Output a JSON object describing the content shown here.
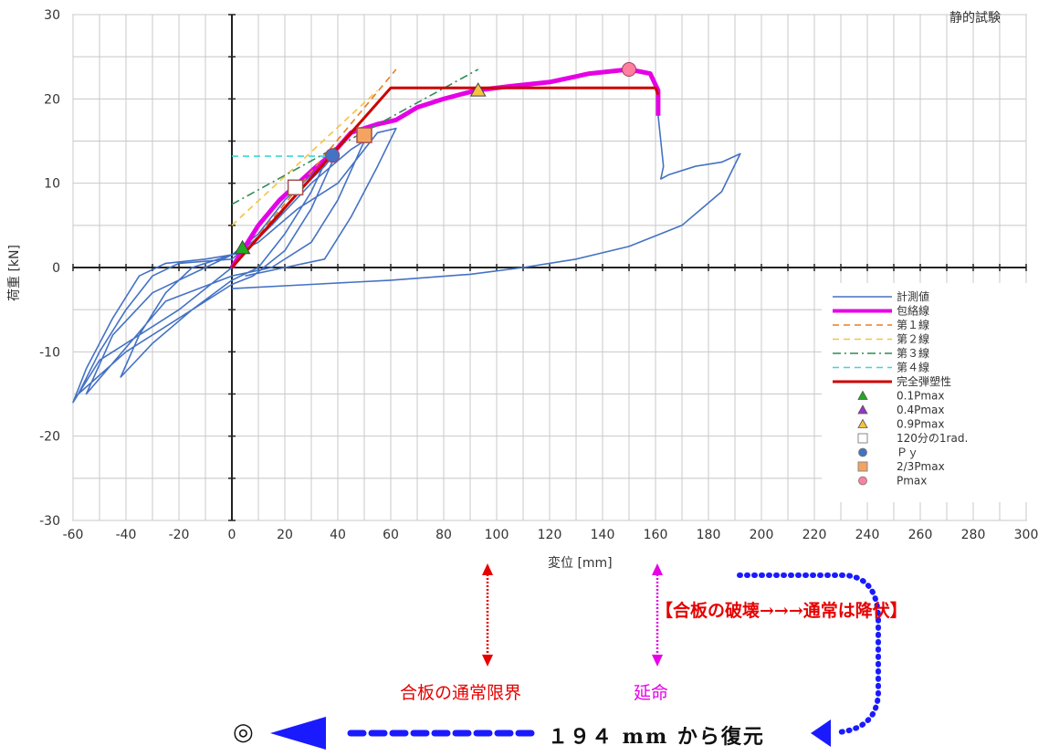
{
  "chart_data": {
    "type": "line",
    "title": "静的試験",
    "xlabel": "変位 [mm]",
    "ylabel": "荷重 [kN]",
    "xlim": [
      -60,
      300
    ],
    "ylim": [
      -30,
      30
    ],
    "x_ticks": [
      "-60",
      "-40",
      "-20",
      "0",
      "20",
      "40",
      "60",
      "80",
      "100",
      "120",
      "140",
      "160",
      "180",
      "200",
      "220",
      "240",
      "260",
      "280",
      "300"
    ],
    "y_ticks": [
      "30",
      "20",
      "10",
      "0",
      "-10",
      "-20",
      "-30"
    ],
    "grid": true,
    "legend_position": "right",
    "legend": [
      {
        "label": "計測値",
        "color": "#4472c4",
        "style": "solid"
      },
      {
        "label": "包絡線",
        "color": "#e600e6",
        "style": "thick"
      },
      {
        "label": "第１線",
        "color": "#e67e22",
        "style": "dash"
      },
      {
        "label": "第２線",
        "color": "#f5c242",
        "style": "dash"
      },
      {
        "label": "第３線",
        "color": "#2e8b57",
        "style": "dashdot"
      },
      {
        "label": "第４線",
        "color": "#3cd6d6",
        "style": "dash"
      },
      {
        "label": "完全弾塑性",
        "color": "#cc0000",
        "style": "solid"
      },
      {
        "label": "0.1Pmax",
        "color": "#22aa22",
        "marker": "triangle"
      },
      {
        "label": "0.4Pmax",
        "color": "#9933cc",
        "marker": "triangle"
      },
      {
        "label": "0.9Pmax",
        "color": "#f5c242",
        "marker": "triangle"
      },
      {
        "label": "120分の1rad.",
        "color": "#ffffff",
        "marker": "square"
      },
      {
        "label": "Ｐｙ",
        "color": "#4472c4",
        "marker": "circle"
      },
      {
        "label": "2/3Pmax",
        "color": "#f4a460",
        "marker": "square"
      },
      {
        "label": "Pmax",
        "color": "#ff7f9f",
        "marker": "circle"
      }
    ],
    "series": [
      {
        "name": "計測値",
        "color": "#4472c4",
        "segments": [
          [
            [
              0,
              0
            ],
            [
              -8,
              -2
            ],
            [
              -20,
              -5
            ],
            [
              -35,
              -8
            ],
            [
              -50,
              -11
            ],
            [
              -60,
              -16
            ],
            [
              -55,
              -12
            ],
            [
              -45,
              -6
            ],
            [
              -35,
              -1
            ],
            [
              -25,
              0.5
            ],
            [
              -10,
              1
            ],
            [
              0,
              1.5
            ],
            [
              10,
              4
            ],
            [
              20,
              8
            ],
            [
              30,
              11
            ],
            [
              36,
              13
            ],
            [
              30,
              9
            ],
            [
              20,
              4
            ],
            [
              10,
              0
            ],
            [
              0,
              -1.5
            ],
            [
              -15,
              -5
            ],
            [
              -30,
              -9
            ],
            [
              -42,
              -13
            ],
            [
              -35,
              -8
            ],
            [
              -25,
              -3
            ],
            [
              -15,
              0
            ],
            [
              -5,
              1
            ],
            [
              5,
              2
            ],
            [
              15,
              5
            ],
            [
              25,
              9
            ],
            [
              35,
              12
            ],
            [
              40,
              14
            ],
            [
              30,
              7
            ],
            [
              20,
              2
            ],
            [
              8,
              -1
            ],
            [
              0,
              -2
            ],
            [
              -20,
              -6
            ],
            [
              -40,
              -10
            ],
            [
              -58,
              -15
            ],
            [
              -50,
              -10
            ],
            [
              -40,
              -5
            ],
            [
              -30,
              -1
            ],
            [
              -20,
              0.5
            ],
            [
              0,
              1
            ],
            [
              15,
              5
            ],
            [
              30,
              10
            ],
            [
              45,
              14
            ],
            [
              50,
              15
            ],
            [
              40,
              8
            ],
            [
              30,
              3
            ],
            [
              15,
              0
            ],
            [
              0,
              -1
            ],
            [
              -25,
              -4
            ],
            [
              -55,
              -15
            ],
            [
              -45,
              -8
            ],
            [
              -30,
              -3
            ],
            [
              -10,
              0
            ],
            [
              10,
              3
            ],
            [
              25,
              7
            ],
            [
              40,
              10
            ],
            [
              55,
              16
            ],
            [
              62,
              16.5
            ],
            [
              55,
              12
            ],
            [
              45,
              6
            ],
            [
              35,
              1
            ],
            [
              20,
              0
            ],
            [
              5,
              -1
            ]
          ],
          [
            [
              0,
              -2.5
            ],
            [
              30,
              -2
            ],
            [
              60,
              -1.5
            ],
            [
              90,
              -0.8
            ],
            [
              110,
              0
            ],
            [
              130,
              1
            ],
            [
              150,
              2.5
            ],
            [
              170,
              5
            ],
            [
              185,
              9
            ],
            [
              192,
              13.5
            ],
            [
              185,
              12.5
            ],
            [
              175,
              12
            ],
            [
              165,
              11
            ],
            [
              162,
              10.5
            ],
            [
              163,
              12
            ],
            [
              161,
              18
            ],
            [
              161,
              21
            ]
          ]
        ]
      },
      {
        "name": "包絡線",
        "color": "#e600e6",
        "points": [
          [
            0,
            0
          ],
          [
            5,
            2.5
          ],
          [
            10,
            5
          ],
          [
            18,
            8
          ],
          [
            25,
            10
          ],
          [
            32,
            12
          ],
          [
            38,
            13.5
          ],
          [
            45,
            16
          ],
          [
            55,
            17
          ],
          [
            62,
            17.5
          ],
          [
            70,
            19
          ],
          [
            80,
            20
          ],
          [
            92,
            21
          ],
          [
            105,
            21.5
          ],
          [
            120,
            22
          ],
          [
            135,
            23
          ],
          [
            150,
            23.5
          ],
          [
            158,
            23
          ],
          [
            161,
            21
          ],
          [
            161,
            18
          ]
        ]
      },
      {
        "name": "第１線",
        "color": "#e67e22",
        "points": [
          [
            0,
            0
          ],
          [
            62,
            23.5
          ]
        ]
      },
      {
        "name": "第２線",
        "color": "#f5c242",
        "points": [
          [
            0,
            5
          ],
          [
            55,
            21
          ]
        ]
      },
      {
        "name": "第３線",
        "color": "#2e8b57",
        "points": [
          [
            0,
            7.5
          ],
          [
            93,
            23.5
          ]
        ]
      },
      {
        "name": "第４線",
        "color": "#3cd6d6",
        "points": [
          [
            0,
            13.2
          ],
          [
            38,
            13.2
          ]
        ]
      },
      {
        "name": "完全弾塑性",
        "color": "#cc0000",
        "points": [
          [
            0,
            0
          ],
          [
            60,
            21.3
          ],
          [
            160,
            21.3
          ],
          [
            161,
            20.5
          ]
        ]
      }
    ],
    "markers": [
      {
        "name": "0.1Pmax",
        "x": 4,
        "y": 2.3,
        "shape": "triangle",
        "color": "#22aa22"
      },
      {
        "name": "0.9Pmax",
        "x": 93,
        "y": 21,
        "shape": "triangle",
        "color": "#f5c242"
      },
      {
        "name": "120分の1rad.",
        "x": 24,
        "y": 9.5,
        "shape": "square",
        "color": "#ffffff"
      },
      {
        "name": "Ｐｙ",
        "x": 38,
        "y": 13.3,
        "shape": "circle",
        "color": "#4472c4"
      },
      {
        "name": "2/3Pmax",
        "x": 50,
        "y": 15.7,
        "shape": "square",
        "color": "#f4a460"
      },
      {
        "name": "Pmax",
        "x": 150,
        "y": 23.5,
        "shape": "circle",
        "color": "#ff7f9f"
      }
    ]
  },
  "annotations": {
    "break_note": "【合板の破壊→→→通常は降伏】",
    "plywood_limit": "合板の通常限界",
    "life_extension": "延命",
    "restore_from": "１９４ mm から復元",
    "target_mark": "◎"
  },
  "colors": {
    "annotation_red": "#e60000",
    "annotation_magenta": "#e600e6",
    "annotation_blue": "#1a1aff"
  }
}
